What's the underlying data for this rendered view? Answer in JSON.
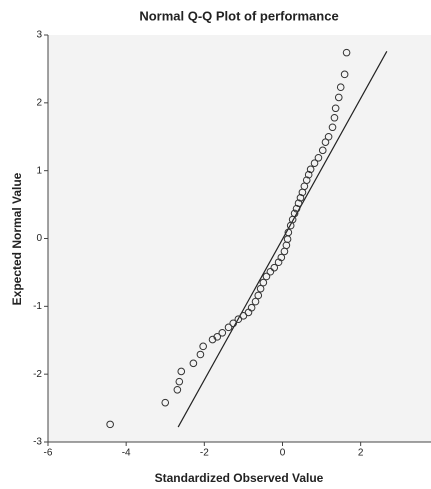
{
  "chart_data": {
    "type": "scatter",
    "title": "Normal Q-Q Plot of performance",
    "x_label": "Standardized Observed Value",
    "y_label": "Expected Normal Value",
    "x": [
      -4.41,
      -3.0,
      -2.69,
      -2.64,
      -2.59,
      -2.28,
      -2.1,
      -2.03,
      -1.79,
      -1.67,
      -1.54,
      -1.38,
      -1.26,
      -1.13,
      -1.0,
      -0.87,
      -0.79,
      -0.69,
      -0.62,
      -0.56,
      -0.49,
      -0.41,
      -0.31,
      -0.21,
      -0.1,
      -0.03,
      0.05,
      0.1,
      0.13,
      0.15,
      0.21,
      0.26,
      0.31,
      0.36,
      0.41,
      0.46,
      0.51,
      0.56,
      0.62,
      0.67,
      0.72,
      0.82,
      0.92,
      1.03,
      1.1,
      1.18,
      1.28,
      1.33,
      1.36,
      1.44,
      1.49,
      1.59,
      1.64
    ],
    "y": [
      -2.74,
      -2.42,
      -2.23,
      -2.11,
      -1.96,
      -1.84,
      -1.71,
      -1.59,
      -1.49,
      -1.45,
      -1.39,
      -1.31,
      -1.25,
      -1.19,
      -1.14,
      -1.09,
      -1.02,
      -0.93,
      -0.84,
      -0.74,
      -0.65,
      -0.56,
      -0.49,
      -0.43,
      -0.35,
      -0.28,
      -0.19,
      -0.1,
      -0.01,
      0.09,
      0.19,
      0.28,
      0.37,
      0.44,
      0.52,
      0.6,
      0.68,
      0.77,
      0.86,
      0.94,
      1.02,
      1.11,
      1.19,
      1.3,
      1.42,
      1.5,
      1.64,
      1.78,
      1.92,
      2.08,
      2.23,
      2.42,
      2.74
    ],
    "marker_color": "#333333",
    "reference_line": {
      "x": [
        -2.67,
        2.67
      ],
      "y": [
        -2.78,
        2.76
      ],
      "color": "#222222"
    },
    "xlim": [
      -6,
      3.8
    ],
    "xticks": [
      -6,
      -4,
      -2,
      0,
      2
    ],
    "ylim": [
      -3,
      3
    ],
    "yticks": [
      -3,
      -2,
      -1,
      0,
      1,
      2,
      3
    ],
    "grid": false
  }
}
